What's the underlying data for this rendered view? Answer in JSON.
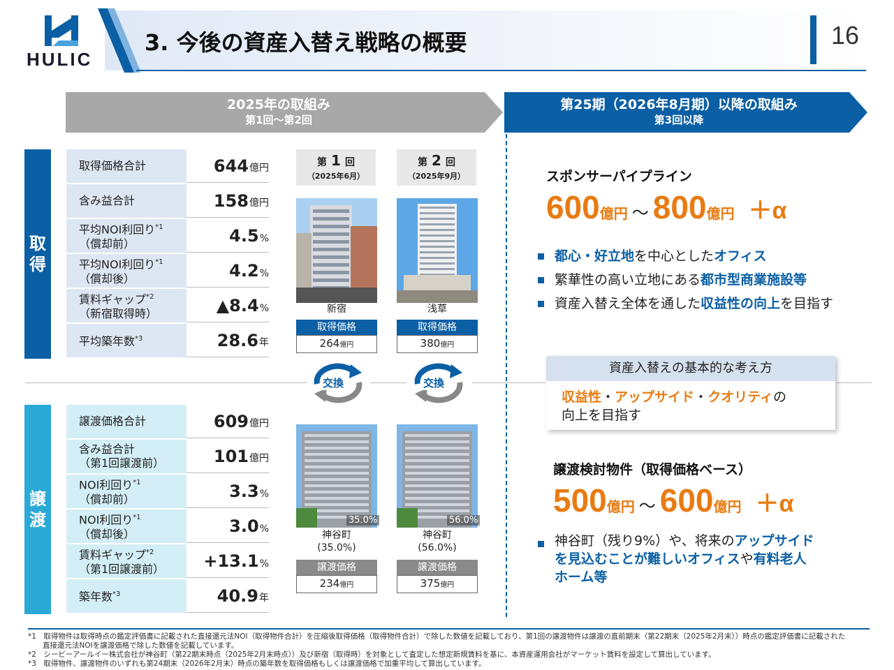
{
  "header": {
    "logo_text": "HULIC",
    "title": "3. 今後の資産入替え戦略の概要",
    "page_number": "16"
  },
  "arrows": {
    "left_main": "2025年の取組み",
    "left_sub": "第1回～第2回",
    "right_main": "第25期（2026年8月期）以降の取組み",
    "right_sub": "第3回以降"
  },
  "acquire": {
    "side": [
      "取",
      "得"
    ],
    "rows": [
      {
        "label": "取得価格合計",
        "note": "",
        "label2": "",
        "value": "644",
        "unit": "億円"
      },
      {
        "label": "含み益合計",
        "note": "",
        "label2": "",
        "value": "158",
        "unit": "億円"
      },
      {
        "label": "平均NOI利回り",
        "note": "*1",
        "label2": "（償却前）",
        "value": "4.5",
        "unit": "%"
      },
      {
        "label": "平均NOI利回り",
        "note": "*1",
        "label2": "（償却後）",
        "value": "4.2",
        "unit": "%"
      },
      {
        "label": "賃料ギャップ",
        "note": "*2",
        "label2": "（新宿取得時）",
        "value": "▲8.4",
        "unit": "%"
      },
      {
        "label": "平均築年数",
        "note": "*3",
        "label2": "",
        "value": "28.6",
        "unit": "年"
      }
    ]
  },
  "transfer": {
    "side": [
      "譲",
      "渡"
    ],
    "rows": [
      {
        "label": "譲渡価格合計",
        "note": "",
        "label2": "",
        "value": "609",
        "unit": "億円"
      },
      {
        "label": "含み益合計",
        "note": "",
        "label2": "（第1回譲渡前）",
        "value": "101",
        "unit": "億円"
      },
      {
        "label": "NOI利回り",
        "note": "*1",
        "label2": "（償却前）",
        "value": "3.3",
        "unit": "%"
      },
      {
        "label": "NOI利回り",
        "note": "*1",
        "label2": "（償却後）",
        "value": "3.0",
        "unit": "%"
      },
      {
        "label": "賃料ギャップ",
        "note": "*2",
        "label2": "（第1回譲渡前）",
        "value": "+13.1",
        "unit": "%"
      },
      {
        "label": "築年数",
        "note": "*3",
        "label2": "",
        "value": "40.9",
        "unit": "年"
      }
    ]
  },
  "rounds": [
    {
      "title_a": "第",
      "title_num": "1",
      "title_b": "回",
      "date": "（2025年6月）",
      "acq_name": "新宿",
      "acq_price_label": "取得価格",
      "acq_price": "264",
      "price_unit": "億円",
      "exchange": "交換",
      "disp_name": "神谷町",
      "disp_pct": "(35.0%)",
      "disp_tag": "35.0%",
      "disp_price_label": "譲渡価格",
      "disp_price": "234"
    },
    {
      "title_a": "第",
      "title_num": "2",
      "title_b": "回",
      "date": "（2025年9月）",
      "acq_name": "浅草",
      "acq_price_label": "取得価格",
      "acq_price": "380",
      "price_unit": "億円",
      "exchange": "交換",
      "disp_name": "神谷町",
      "disp_pct": "(56.0%)",
      "disp_tag": "56.0%",
      "disp_price_label": "譲渡価格",
      "disp_price": "375"
    }
  ],
  "right": {
    "pipeline": {
      "heading": "スポンサーパイプライン",
      "from": "600",
      "to": "800",
      "unit": "億円",
      "tilde": "～",
      "alpha": "＋α",
      "bullets": [
        [
          {
            "t": "都心・好立地",
            "s": "b"
          },
          {
            "t": "を中心とした",
            "s": ""
          },
          {
            "t": "オフィス",
            "s": "b"
          }
        ],
        [
          {
            "t": "繁華性の高い立地にある",
            "s": ""
          },
          {
            "t": "都市型商業施設等",
            "s": "b"
          }
        ],
        [
          {
            "t": "資産入替え全体を通した",
            "s": ""
          },
          {
            "t": "収益性の向上",
            "s": "b"
          },
          {
            "t": "を目指す",
            "s": ""
          }
        ]
      ]
    },
    "concept": {
      "heading": "資産入替えの基本的な考え方",
      "w1": "収益性",
      "dot": "・",
      "w2": "アップサイド",
      "w3": "クオリティ",
      "no": "の",
      "line2": "向上を目指す"
    },
    "transfer": {
      "heading": "譲渡検討物件（取得価格ベース）",
      "from": "500",
      "to": "600",
      "unit": "億円",
      "tilde": "～",
      "alpha": "＋α",
      "bullet_a": "神谷町（残り9%）や、将来の",
      "bullet_b": "アップサイド",
      "bullet_c": "を見込むことが難しいオフィス",
      "bullet_d": "や",
      "bullet_e": "有料老人",
      "bullet_f": "ホーム等"
    }
  },
  "footnotes": [
    "*1　取得物件は取得時点の鑑定評価書に記載された直接還元法NOI（取得物件合計）を圧縮後取得価格（取得物件合計）で除した数値を記載しており、第1回の譲渡物件は譲渡の直前期末（第22期末（2025年2月末））時点の鑑定評価書に記載された",
    "　　直接還元法NOIを譲渡価格で除した数値を記載しています。",
    "*2　シービーアールイー株式会社が神谷町（第22期末時点（2025年2月末時点））及び新宿（取得時）を対象として査定した想定新規賃料を基に、本資産運用会社がマーケット賃料を設定して算出しています。",
    "*3　取得物件、譲渡物件のいずれも第24期末（2026年2月末）時点の築年数を取得価格もしくは譲渡価格で加重平均して算出しています。"
  ],
  "colors": {
    "primary": "#0b5fa5",
    "accent": "#e87b12",
    "acquire_side": "#0b5fa5",
    "transfer_side": "#2aa9d6"
  }
}
